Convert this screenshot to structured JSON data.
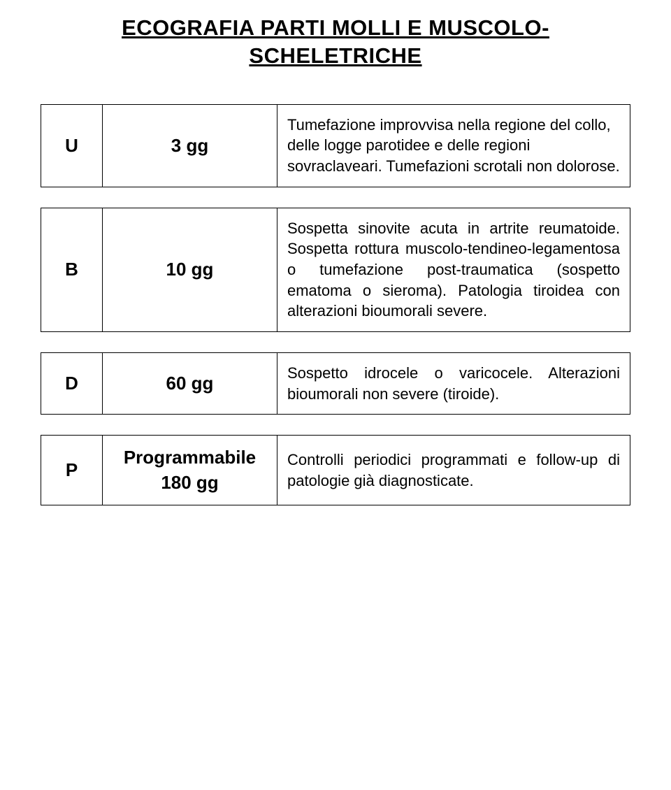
{
  "title": "ECOGRAFIA PARTI MOLLI E MUSCOLO-SCHELETRICHE",
  "rows": [
    {
      "code": "U",
      "time": "3 gg",
      "desc": "Tumefazione improvvisa nella regione del collo, delle logge parotidee e delle regioni sovraclaveari.\nTumefazioni scrotali non dolorose."
    },
    {
      "code": "B",
      "time": "10 gg",
      "desc": "Sospetta sinovite acuta in artrite reumatoide.\nSospetta rottura muscolo-tendineo-legamentosa o tumefazione post-traumatica (sospetto ematoma o sieroma).\nPatologia tiroidea con alterazioni bioumorali severe."
    },
    {
      "code": "D",
      "time": "60 gg",
      "desc": "Sospetto idrocele o varicocele.\nAlterazioni bioumorali non severe (tiroide)."
    },
    {
      "code": "P",
      "time_line1": "Programmabile",
      "time_line2": "180 gg",
      "desc": "Controlli periodici programmati e follow-up di patologie già diagnosticate."
    }
  ]
}
